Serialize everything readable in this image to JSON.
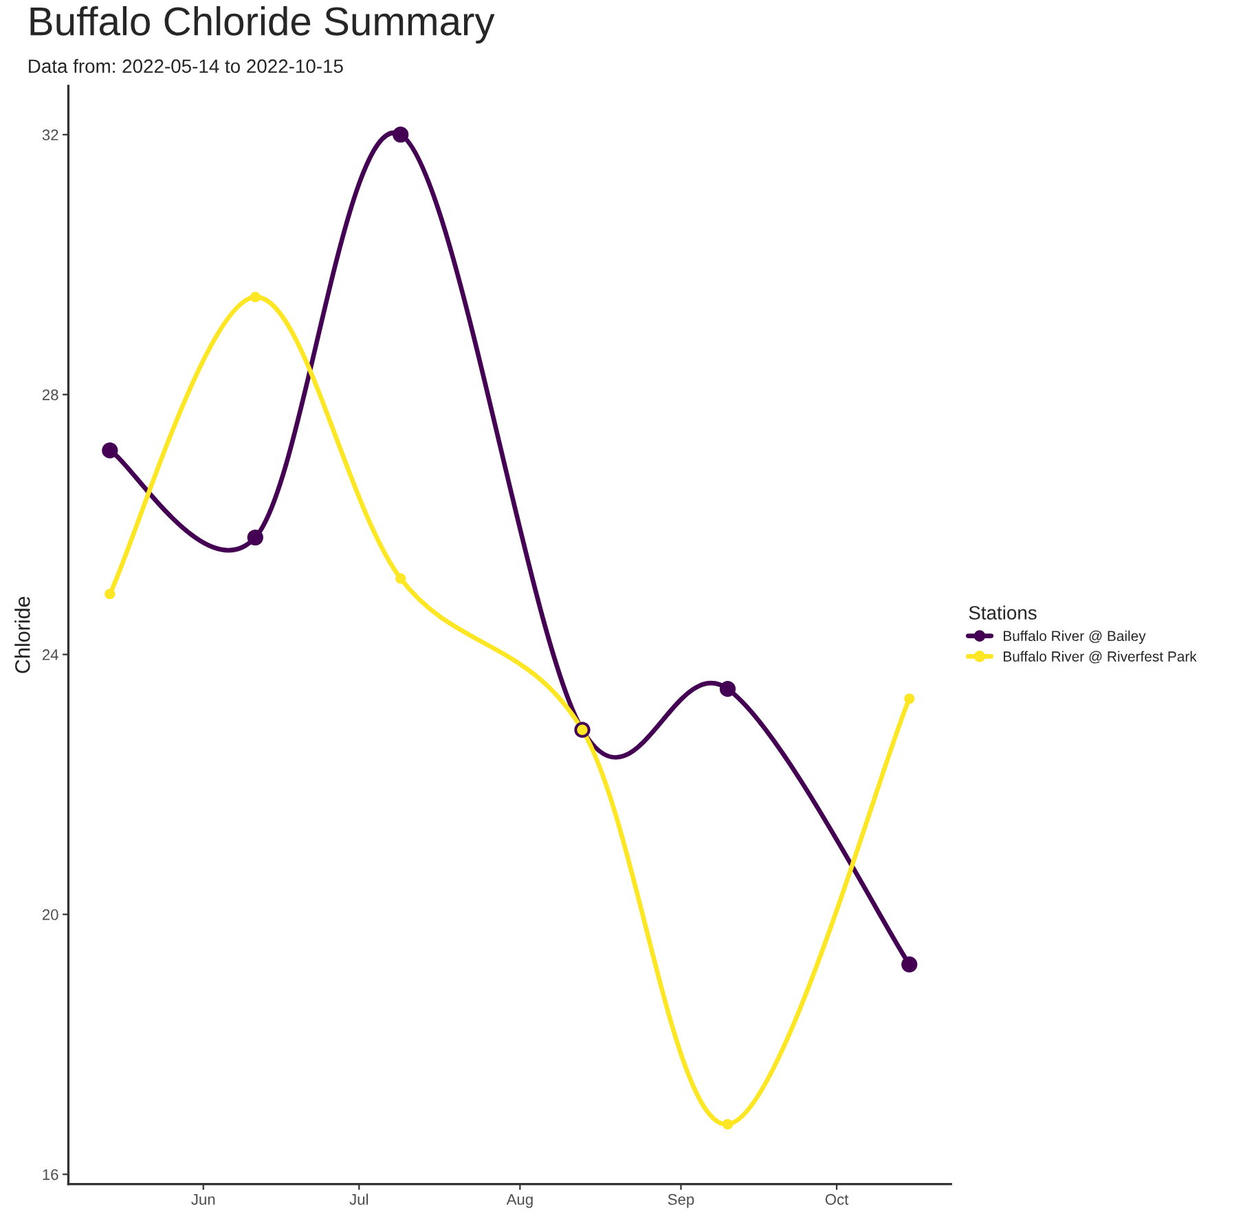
{
  "chart_data": {
    "type": "line",
    "title": "Buffalo Chloride Summary",
    "subtitle": "Data from: 2022-05-14 to 2022-10-15",
    "ylabel": "Chloride",
    "legend_title": "Stations",
    "x": [
      "2022-05-14",
      "2022-06-11",
      "2022-07-09",
      "2022-08-13",
      "2022-09-10",
      "2022-10-15"
    ],
    "series": [
      {
        "name": "Buffalo River @ Bailey",
        "color": "#440154",
        "values": [
          27.14,
          25.8,
          32.0,
          22.84,
          23.47,
          19.23
        ]
      },
      {
        "name": "Buffalo River @ Riverfest Park",
        "color": "#fde725",
        "values": [
          24.93,
          29.5,
          25.17,
          22.84,
          16.77,
          23.32
        ]
      }
    ],
    "xlim": [
      "2022-05-06",
      "2022-10-23"
    ],
    "xticks": [
      {
        "value": "2022-06-01",
        "label": "Jun"
      },
      {
        "value": "2022-07-01",
        "label": "Jul"
      },
      {
        "value": "2022-08-01",
        "label": "Aug"
      },
      {
        "value": "2022-09-01",
        "label": "Sep"
      },
      {
        "value": "2022-10-01",
        "label": "Oct"
      }
    ],
    "ylim": [
      15.85,
      32.75
    ],
    "yticks": [
      16,
      20,
      24,
      28,
      32
    ],
    "grid": false,
    "legend": "right",
    "marker": "circle",
    "line_style": "solid"
  }
}
